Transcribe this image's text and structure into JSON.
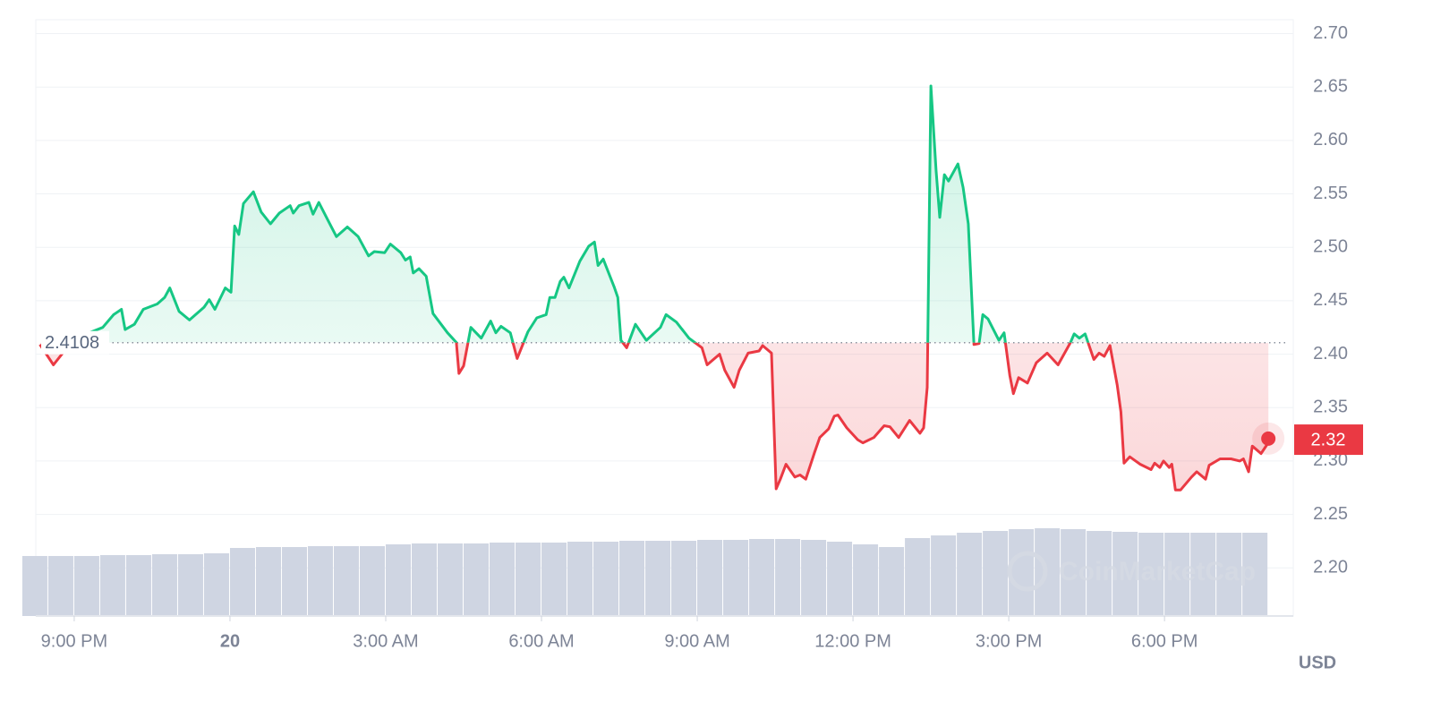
{
  "chart_data": {
    "type": "line",
    "x": [
      20.34,
      20.6,
      20.86,
      21.29,
      21.55,
      21.76,
      21.91,
      21.98,
      22.16,
      22.33,
      22.6,
      22.74,
      22.84,
      23.02,
      23.22,
      23.5,
      23.6,
      23.71,
      23.91,
      24.02,
      24.09,
      24.17,
      24.26,
      24.45,
      24.6,
      24.78,
      24.95,
      25.16,
      25.22,
      25.33,
      25.52,
      25.6,
      25.71,
      25.88,
      26.05,
      26.26,
      26.47,
      26.67,
      26.78,
      26.98,
      27.09,
      27.29,
      27.38,
      27.47,
      27.53,
      27.64,
      27.78,
      27.91,
      28.19,
      28.36,
      28.41,
      28.5,
      28.64,
      28.84,
      29.02,
      29.12,
      29.22,
      29.4,
      29.53,
      29.74,
      29.91,
      30.09,
      30.16,
      30.26,
      30.36,
      30.43,
      30.53,
      30.74,
      30.91,
      31.02,
      31.09,
      31.19,
      31.4,
      31.47,
      31.53,
      31.64,
      31.81,
      32.02,
      32.29,
      32.4,
      32.6,
      32.84,
      33.09,
      33.19,
      33.43,
      33.53,
      33.71,
      33.81,
      33.98,
      34.19,
      34.26,
      34.43,
      34.52,
      34.6,
      34.71,
      34.88,
      34.98,
      35.09,
      35.26,
      35.36,
      35.53,
      35.64,
      35.71,
      35.88,
      36.09,
      36.19,
      36.4,
      36.6,
      36.71,
      36.88,
      37.09,
      37.29,
      37.36,
      37.43,
      37.5,
      37.6,
      37.67,
      37.76,
      37.84,
      38.02,
      38.12,
      38.22,
      38.33,
      38.43,
      38.5,
      38.6,
      38.81,
      38.91,
      39.02,
      39.09,
      39.19,
      39.36,
      39.53,
      39.74,
      39.95,
      40.19,
      40.26,
      40.36,
      40.47,
      40.64,
      40.74,
      40.84,
      40.95,
      41.09,
      41.16,
      41.22,
      41.33,
      41.53,
      41.74,
      41.81,
      41.91,
      41.98,
      42.09,
      42.14,
      42.21,
      42.31,
      42.52,
      42.62,
      42.79,
      42.86,
      43.07,
      43.28,
      43.45,
      43.52,
      43.62,
      43.69,
      43.86,
      43.97,
      44.0
    ],
    "values": [
      2.409,
      2.39,
      2.406,
      2.42,
      2.425,
      2.437,
      2.442,
      2.423,
      2.428,
      2.442,
      2.447,
      2.453,
      2.462,
      2.44,
      2.432,
      2.444,
      2.451,
      2.442,
      2.462,
      2.458,
      2.52,
      2.512,
      2.541,
      2.552,
      2.533,
      2.522,
      2.532,
      2.539,
      2.532,
      2.539,
      2.542,
      2.531,
      2.542,
      2.526,
      2.51,
      2.519,
      2.51,
      2.492,
      2.496,
      2.495,
      2.503,
      2.495,
      2.488,
      2.491,
      2.476,
      2.48,
      2.473,
      2.438,
      2.42,
      2.411,
      2.382,
      2.389,
      2.425,
      2.415,
      2.431,
      2.42,
      2.426,
      2.42,
      2.396,
      2.421,
      2.434,
      2.437,
      2.453,
      2.453,
      2.468,
      2.472,
      2.462,
      2.487,
      2.501,
      2.505,
      2.483,
      2.489,
      2.463,
      2.453,
      2.413,
      2.406,
      2.428,
      2.413,
      2.425,
      2.437,
      2.43,
      2.415,
      2.406,
      2.39,
      2.4,
      2.385,
      2.369,
      2.385,
      2.401,
      2.403,
      2.408,
      2.401,
      2.274,
      2.283,
      2.297,
      2.285,
      2.287,
      2.283,
      2.308,
      2.322,
      2.33,
      2.342,
      2.343,
      2.331,
      2.32,
      2.317,
      2.322,
      2.333,
      2.332,
      2.322,
      2.338,
      2.326,
      2.331,
      2.369,
      2.651,
      2.572,
      2.528,
      2.568,
      2.562,
      2.578,
      2.556,
      2.522,
      2.409,
      2.41,
      2.437,
      2.433,
      2.413,
      2.42,
      2.38,
      2.363,
      2.378,
      2.373,
      2.392,
      2.401,
      2.39,
      2.411,
      2.419,
      2.415,
      2.419,
      2.395,
      2.401,
      2.398,
      2.408,
      2.371,
      2.346,
      2.298,
      2.304,
      2.297,
      2.292,
      2.298,
      2.294,
      2.3,
      2.294,
      2.297,
      2.273,
      2.273,
      2.285,
      2.29,
      2.283,
      2.296,
      2.302,
      2.302,
      2.3,
      2.302,
      2.29,
      2.314,
      2.307,
      2.315,
      2.321
    ],
    "xlim": [
      20.26,
      44.48
    ],
    "ylim": [
      2.155,
      2.713
    ],
    "xticks": [
      {
        "value": 21,
        "label": "9:00 PM"
      },
      {
        "value": 24,
        "label": "20"
      },
      {
        "value": 27,
        "label": "3:00 AM"
      },
      {
        "value": 30,
        "label": "6:00 AM"
      },
      {
        "value": 33,
        "label": "9:00 AM"
      },
      {
        "value": 36,
        "label": "12:00 PM"
      },
      {
        "value": 39,
        "label": "3:00 PM"
      },
      {
        "value": 42,
        "label": "6:00 PM"
      }
    ],
    "yticks": [
      {
        "value": 2.2,
        "label": "2.20"
      },
      2.25,
      {
        "value": 2.3,
        "label": "2.30"
      },
      2.35,
      {
        "value": 2.4,
        "label": "2.40"
      },
      2.45,
      {
        "value": 2.5,
        "label": "2.50"
      },
      2.55,
      {
        "value": 2.6,
        "label": "2.60"
      },
      2.65,
      {
        "value": 2.7,
        "label": "2.70"
      }
    ],
    "grid": true,
    "baseline": 2.4108,
    "current_price": 2.32,
    "unit": "USD",
    "watermark": "CoinMarketCap",
    "up_color": "#16c784",
    "down_color": "#ea3943",
    "volume_color": "#cfd5e2",
    "volume": {
      "x": [
        20.5,
        21,
        21.5,
        22,
        22.5,
        23,
        23.5,
        24,
        24.5,
        25,
        25.5,
        26,
        26.5,
        27,
        27.5,
        28,
        28.5,
        29,
        29.5,
        30,
        30.5,
        31,
        31.5,
        32,
        32.5,
        33,
        33.5,
        34,
        34.5,
        35,
        35.5,
        36,
        36.5,
        37,
        37.5,
        38,
        38.5,
        39,
        39.5,
        40,
        40.5,
        41,
        41.5,
        42,
        42.5,
        43,
        43.5,
        44
      ],
      "values": [
        67,
        67,
        67,
        68,
        68,
        69,
        69,
        70,
        76,
        77,
        77,
        78,
        78,
        78,
        80,
        81,
        81,
        81,
        82,
        82,
        82,
        83,
        83,
        84,
        84,
        84,
        85,
        85,
        86,
        86,
        85,
        83,
        80,
        77,
        87,
        90,
        93,
        95,
        97,
        98,
        97,
        95,
        94,
        93,
        93,
        93,
        93,
        93
      ]
    }
  }
}
